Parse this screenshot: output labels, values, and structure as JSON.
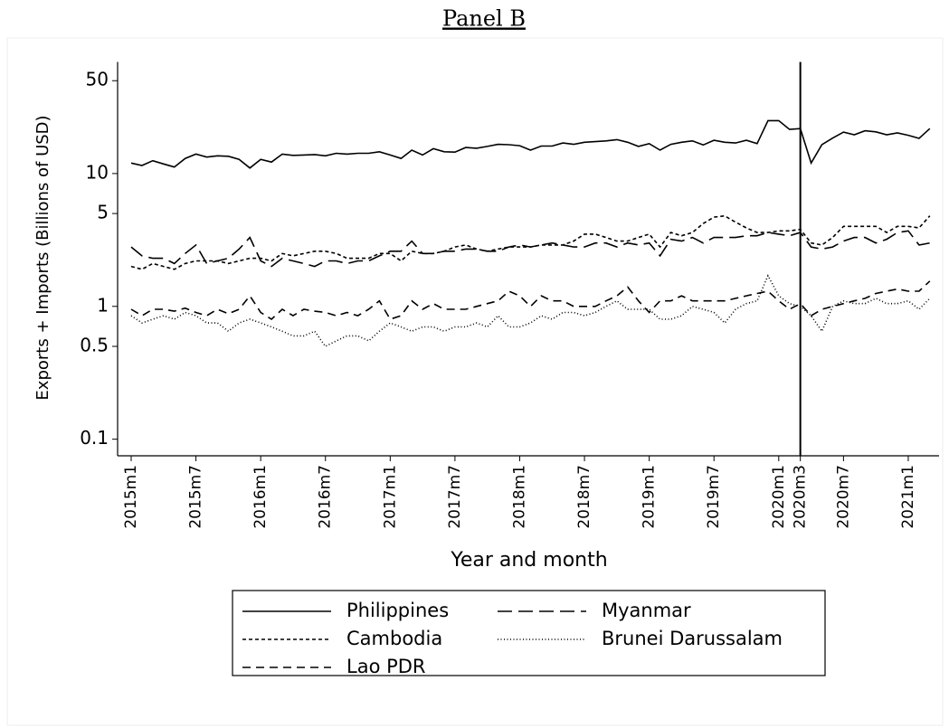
{
  "chart_data": {
    "type": "line",
    "title": "Panel B",
    "y_label": "Exports + Imports (Billions of USD)",
    "x_label": "Year and month",
    "log_y": true,
    "ylim": [
      0.075,
      65
    ],
    "yticks": [
      0.1,
      0.5,
      1,
      5,
      10,
      50
    ],
    "vline": "2020m3",
    "legend_columns": 2,
    "legend_position": "bottom",
    "categories": [
      "2015m1",
      null,
      null,
      null,
      null,
      null,
      "2015m7",
      null,
      null,
      null,
      null,
      null,
      "2016m1",
      null,
      null,
      null,
      null,
      null,
      "2016m7",
      null,
      null,
      null,
      null,
      null,
      "2017m1",
      null,
      null,
      null,
      null,
      null,
      "2017m7",
      null,
      null,
      null,
      null,
      null,
      "2018m1",
      null,
      null,
      null,
      null,
      null,
      "2018m7",
      null,
      null,
      null,
      null,
      null,
      "2019m1",
      null,
      null,
      null,
      null,
      null,
      "2019m7",
      null,
      null,
      null,
      null,
      null,
      "2020m1",
      null,
      "2020m3",
      null,
      null,
      null,
      "2020m7",
      null,
      null,
      null,
      null,
      null,
      "2021m1",
      null,
      null
    ],
    "series": [
      {
        "name": "Philippines",
        "color": "#000000",
        "dash": "solid",
        "values": [
          12,
          11.5,
          12.5,
          11.8,
          11.2,
          13,
          14,
          13.3,
          13.6,
          13.5,
          12.8,
          11,
          12.8,
          12.2,
          14,
          13.7,
          13.8,
          13.9,
          13.6,
          14.2,
          14,
          14.2,
          14.2,
          14.6,
          13.8,
          13,
          15,
          13.8,
          15.4,
          14.6,
          14.5,
          15.7,
          15.5,
          16,
          16.6,
          16.5,
          16.2,
          15,
          16.1,
          16.1,
          17,
          16.6,
          17.2,
          17.4,
          17.6,
          18,
          17.2,
          16,
          16.8,
          15,
          16.6,
          17.2,
          17.6,
          16.4,
          17.8,
          17.2,
          17,
          17.8,
          16.8,
          25,
          25,
          21.5,
          21.8,
          12,
          16.5,
          18.5,
          20.5,
          19.6,
          21,
          20.6,
          19.6,
          20.2,
          19.4,
          18.4,
          21.8
        ]
      },
      {
        "name": "Myanmar",
        "color": "#000000",
        "dash": "long",
        "values": [
          2.8,
          2.4,
          2.3,
          2.3,
          2.1,
          2.5,
          2.9,
          2.1,
          2.2,
          2.3,
          2.7,
          3.3,
          2.2,
          2.0,
          2.3,
          2.2,
          2.1,
          2.0,
          2.2,
          2.2,
          2.1,
          2.2,
          2.2,
          2.4,
          2.6,
          2.6,
          3.1,
          2.5,
          2.5,
          2.6,
          2.6,
          2.7,
          2.7,
          2.6,
          2.6,
          2.8,
          2.9,
          2.8,
          2.9,
          3.0,
          2.9,
          2.8,
          2.8,
          3.0,
          3.0,
          2.8,
          3.0,
          2.9,
          3.0,
          2.4,
          3.2,
          3.1,
          3.3,
          3.0,
          3.3,
          3.3,
          3.3,
          3.4,
          3.4,
          3.6,
          3.5,
          3.4,
          3.6,
          2.8,
          2.7,
          2.8,
          3.1,
          3.3,
          3.3,
          3.0,
          3.2,
          3.6,
          3.7,
          2.9,
          3.0
        ]
      },
      {
        "name": "Cambodia",
        "color": "#000000",
        "dash": "short",
        "values": [
          2.0,
          1.9,
          2.1,
          2.0,
          1.9,
          2.1,
          2.2,
          2.2,
          2.2,
          2.1,
          2.2,
          2.3,
          2.3,
          2.2,
          2.5,
          2.4,
          2.5,
          2.6,
          2.6,
          2.5,
          2.3,
          2.3,
          2.3,
          2.5,
          2.5,
          2.2,
          2.6,
          2.5,
          2.5,
          2.6,
          2.8,
          2.9,
          2.7,
          2.6,
          2.7,
          2.8,
          2.8,
          2.8,
          2.9,
          2.9,
          2.9,
          3.1,
          3.5,
          3.5,
          3.3,
          3.1,
          3.1,
          3.3,
          3.5,
          2.8,
          3.6,
          3.4,
          3.6,
          4.2,
          4.7,
          4.8,
          4.3,
          3.9,
          3.6,
          3.6,
          3.7,
          3.7,
          3.8,
          3.0,
          2.9,
          3.3,
          4.0,
          4.0,
          4.0,
          4.0,
          3.6,
          4.0,
          4.0,
          3.9,
          4.8
        ]
      },
      {
        "name": "Brunei Darussalam",
        "color": "#000000",
        "dash": "dot",
        "values": [
          0.85,
          0.75,
          0.8,
          0.85,
          0.8,
          0.9,
          0.85,
          0.75,
          0.75,
          0.65,
          0.75,
          0.8,
          0.75,
          0.7,
          0.65,
          0.6,
          0.6,
          0.65,
          0.5,
          0.55,
          0.6,
          0.6,
          0.55,
          0.65,
          0.75,
          0.7,
          0.65,
          0.7,
          0.7,
          0.65,
          0.7,
          0.7,
          0.75,
          0.7,
          0.85,
          0.7,
          0.7,
          0.75,
          0.85,
          0.8,
          0.9,
          0.9,
          0.85,
          0.9,
          1.0,
          1.1,
          0.95,
          0.95,
          0.95,
          0.8,
          0.8,
          0.85,
          1.0,
          0.95,
          0.9,
          0.75,
          0.95,
          1.05,
          1.1,
          1.7,
          1.2,
          1.05,
          1.0,
          0.85,
          0.65,
          1.0,
          1.1,
          1.05,
          1.05,
          1.15,
          1.05,
          1.05,
          1.1,
          0.95,
          1.15
        ]
      },
      {
        "name": "Lao PDR",
        "color": "#000000",
        "dash": "medium",
        "values": [
          0.95,
          0.85,
          0.95,
          0.95,
          0.92,
          0.97,
          0.9,
          0.85,
          0.95,
          0.88,
          0.95,
          1.2,
          0.9,
          0.8,
          0.95,
          0.85,
          0.95,
          0.92,
          0.9,
          0.85,
          0.9,
          0.85,
          0.95,
          1.1,
          0.8,
          0.85,
          1.1,
          0.95,
          1.05,
          0.95,
          0.95,
          0.95,
          1.0,
          1.05,
          1.1,
          1.3,
          1.2,
          1.0,
          1.2,
          1.1,
          1.1,
          1.0,
          1.0,
          1.0,
          1.1,
          1.2,
          1.4,
          1.1,
          0.9,
          1.1,
          1.1,
          1.2,
          1.1,
          1.1,
          1.1,
          1.1,
          1.15,
          1.2,
          1.25,
          1.3,
          1.1,
          0.95,
          1.05,
          0.85,
          0.95,
          1.0,
          1.05,
          1.1,
          1.15,
          1.25,
          1.3,
          1.35,
          1.3,
          1.3,
          1.55
        ]
      }
    ]
  }
}
